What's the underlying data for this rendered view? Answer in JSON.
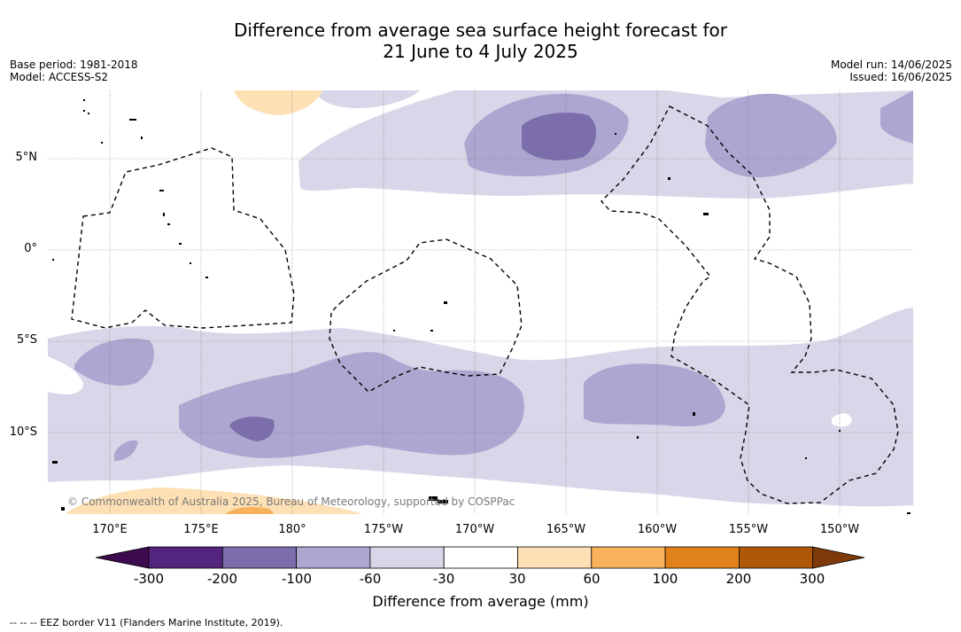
{
  "title_line1": "Difference from average sea surface height forecast for",
  "title_line2": "21 June to 4 July 2025",
  "meta": {
    "base_period": "Base period: 1981-2018",
    "model": "Model: ACCESS-S2",
    "model_run": "Model run: 14/06/2025",
    "issued": "Issued: 16/06/2025"
  },
  "axes": {
    "lat_labels": [
      "5°N",
      "0°",
      "5°S",
      "10°S"
    ],
    "lon_labels": [
      "170°E",
      "175°E",
      "180°",
      "175°W",
      "170°W",
      "165°W",
      "160°W",
      "155°W",
      "150°W"
    ]
  },
  "copyright": "© Commonwealth of Australia 2025, Bureau of Meteorology, supported by COSPPac",
  "colorbar": {
    "title": "Difference from average (mm)",
    "ticks": [
      "-300",
      "-200",
      "-100",
      "-60",
      "-30",
      "30",
      "60",
      "100",
      "200",
      "300"
    ],
    "colors": [
      "#3d0a4f",
      "#54257f",
      "#7b6eab",
      "#aca7d0",
      "#d7d7e9",
      "#ffffff",
      "#fde0b4",
      "#f9b25c",
      "#e1821b",
      "#b05809",
      "#7e3a0a"
    ]
  },
  "footnote": "--  --  -- EEZ border V11 (Flanders Marine Institute, 2019)."
}
